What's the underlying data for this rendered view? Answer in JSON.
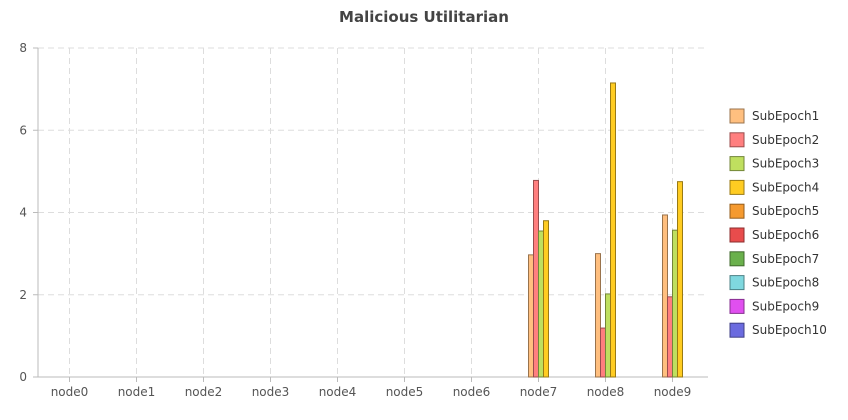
{
  "chart_data": {
    "type": "bar",
    "title": "Malicious Utilitarian",
    "xlabel": "",
    "ylabel": "",
    "categories": [
      "node0",
      "node1",
      "node2",
      "node3",
      "node4",
      "node5",
      "node6",
      "node7",
      "node8",
      "node9"
    ],
    "ylim": [
      0,
      8
    ],
    "yticks": [
      0,
      2,
      4,
      6,
      8
    ],
    "grid": true,
    "legend_position": "right",
    "series": [
      {
        "name": "SubEpoch1",
        "color": "#ffbf7f",
        "values": [
          0,
          0,
          0,
          0,
          0,
          0,
          0,
          2.97,
          3.0,
          3.94
        ]
      },
      {
        "name": "SubEpoch2",
        "color": "#ff7f7f",
        "values": [
          0,
          0,
          0,
          0,
          0,
          0,
          0,
          4.78,
          1.19,
          1.95
        ]
      },
      {
        "name": "SubEpoch3",
        "color": "#bfdf5f",
        "values": [
          0,
          0,
          0,
          0,
          0,
          0,
          0,
          3.55,
          2.02,
          3.57
        ]
      },
      {
        "name": "SubEpoch4",
        "color": "#ffcc22",
        "values": [
          0,
          0,
          0,
          0,
          0,
          0,
          0,
          3.8,
          7.15,
          4.75
        ]
      },
      {
        "name": "SubEpoch5",
        "color": "#f59a2f",
        "values": [
          0,
          0,
          0,
          0,
          0,
          0,
          0,
          0,
          0,
          0
        ]
      },
      {
        "name": "SubEpoch6",
        "color": "#e84c4c",
        "values": [
          0,
          0,
          0,
          0,
          0,
          0,
          0,
          0,
          0,
          0
        ]
      },
      {
        "name": "SubEpoch7",
        "color": "#6ab04c",
        "values": [
          0,
          0,
          0,
          0,
          0,
          0,
          0,
          0,
          0,
          0
        ]
      },
      {
        "name": "SubEpoch8",
        "color": "#7fd8df",
        "values": [
          0,
          0,
          0,
          0,
          0,
          0,
          0,
          0,
          0,
          0
        ]
      },
      {
        "name": "SubEpoch9",
        "color": "#e04fef",
        "values": [
          0,
          0,
          0,
          0,
          0,
          0,
          0,
          0,
          0,
          0
        ]
      },
      {
        "name": "SubEpoch10",
        "color": "#6b6bdf",
        "values": [
          0,
          0,
          0,
          0,
          0,
          0,
          0,
          0,
          0,
          0
        ]
      }
    ]
  }
}
